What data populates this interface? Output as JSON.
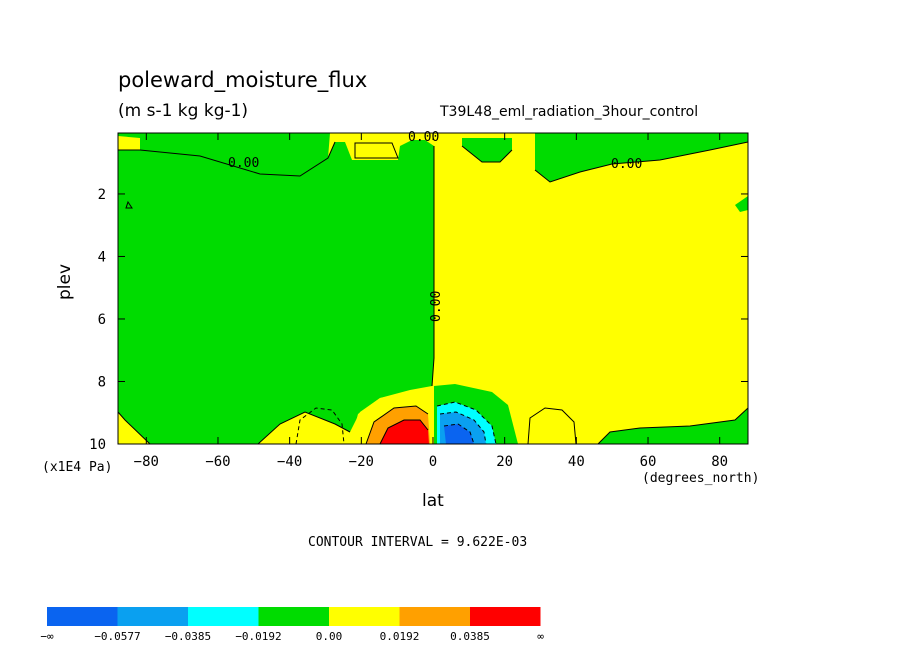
{
  "figure": {
    "title": "poleward_moisture_flux",
    "units": "(m s-1 kg kg-1)",
    "run_name": "T39L48_eml_radiation_3hour_control",
    "contour_interval_text": "CONTOUR INTERVAL = 9.622E-03"
  },
  "chart_data": {
    "type": "contour",
    "title": "poleward_moisture_flux",
    "xlabel": "lat",
    "x_units": "(degrees_north)",
    "ylabel": "plev",
    "y_units": "(x1E4 Pa)",
    "xlim": [
      -87.9,
      87.9
    ],
    "ylim": [
      0.05,
      10
    ],
    "y_axis_inverted": true,
    "x_ticks": [
      -80,
      -60,
      -40,
      -20,
      0,
      20,
      40,
      60,
      80
    ],
    "y_ticks": [
      2,
      4,
      6,
      8,
      10
    ],
    "contour_interval": 0.009622,
    "contour_line_labels": [
      "0.00",
      "0.00",
      "0.00",
      "0.00"
    ],
    "colorbar": {
      "labels": [
        "-∞",
        "-0.0577",
        "-0.0385",
        "-0.0192",
        "0.00",
        "0.0192",
        "0.0385",
        "∞"
      ],
      "colors": [
        "#0a64f0",
        "#0aa0f0",
        "#00ffff",
        "#00dc00",
        "#ffff00",
        "#ffa000",
        "#ff0000"
      ]
    },
    "features": [
      {
        "sign": "positive",
        "lat_range": [
          -20,
          0
        ],
        "plev_range": [
          8.6,
          10
        ],
        "peak_lat": -8,
        "peak_plev": 9.9,
        "level": "> 0.0385"
      },
      {
        "sign": "negative",
        "lat_range": [
          0,
          25
        ],
        "plev_range": [
          8.2,
          10
        ],
        "peak_lat": 8,
        "peak_plev": 9.9,
        "level": "< -0.0385"
      },
      {
        "sign": "negative-weak",
        "region": "southern hemisphere",
        "lat_range": [
          -88,
          0
        ],
        "plev_range": [
          0.3,
          9.0
        ]
      },
      {
        "sign": "positive-weak",
        "region": "northern hemisphere",
        "lat_range": [
          0,
          88
        ],
        "plev_range": [
          0.5,
          10
        ]
      }
    ]
  }
}
